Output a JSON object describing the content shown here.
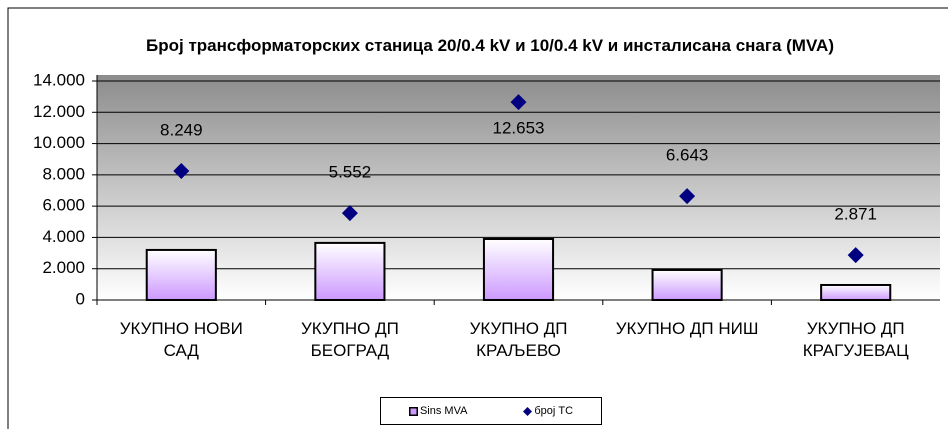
{
  "chart_data": {
    "type": "bar_scatter",
    "title": "Број трансформаторских станица 20/0.4 kV и 10/0.4 kV и инсталисана снага (MVA)",
    "categories": [
      "УКУПНО НОВИ САД",
      "УКУПНО ДП БЕОГРАД",
      "УКУПНО ДП КРАЉЕВО",
      "УКУПНО ДП НИШ",
      "УКУПНО ДП КРАГУЈЕВАЦ"
    ],
    "series": [
      {
        "name": "Sins MVA",
        "color": "#cc99ff",
        "values": [
          3200,
          3650,
          3900,
          1920,
          960
        ]
      },
      {
        "name": "број ТС",
        "color": "#000080",
        "values": [
          8249,
          5552,
          12653,
          6643,
          2871
        ],
        "value_labels": [
          "8.249",
          "5.552",
          "12.653",
          "6.643",
          "2.871"
        ]
      }
    ],
    "ylim": [
      0,
      14000
    ],
    "yticks": [
      0,
      {
        "value": 2000,
        "label": "2.000"
      },
      {
        "value": 4000,
        "label": "4.000"
      },
      {
        "value": 6000,
        "label": "6.000"
      },
      {
        "value": 8000,
        "label": "8.000"
      },
      {
        "value": 10000,
        "label": "10.000"
      },
      {
        "value": 12000,
        "label": "12.000"
      },
      {
        "value": 14000,
        "label": "14.000"
      }
    ],
    "grid": true
  }
}
